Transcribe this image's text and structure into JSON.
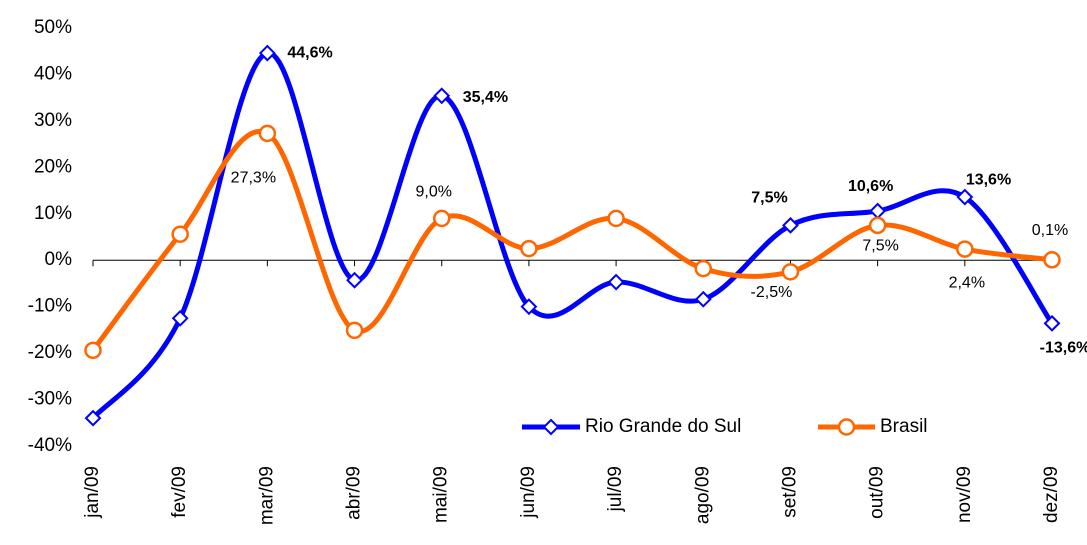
{
  "chart_data": {
    "type": "line",
    "categories": [
      "jan/09",
      "fev/09",
      "mar/09",
      "abr/09",
      "mai/09",
      "jun/09",
      "jul/09",
      "ago/09",
      "set/09",
      "out/09",
      "nov/09",
      "dez/09"
    ],
    "series": [
      {
        "name": "Rio Grande do Sul",
        "color": "#0000ff",
        "marker": "diamond",
        "values": [
          -34,
          -12.5,
          44.6,
          -4.3,
          35.4,
          -10,
          -4.7,
          -8.4,
          7.5,
          10.6,
          13.6,
          -13.6
        ],
        "value_labels": [
          null,
          null,
          "44,6%",
          null,
          "35,4%",
          null,
          null,
          null,
          "7,5%",
          "10,6%",
          "13,6%",
          "-13,6%"
        ]
      },
      {
        "name": "Brasil",
        "color": "#ff6600",
        "marker": "circle",
        "values": [
          -19.4,
          5.6,
          27.3,
          -15.1,
          9.0,
          2.5,
          9.0,
          -1.8,
          -2.5,
          7.5,
          2.4,
          0.1
        ],
        "value_labels": [
          null,
          null,
          "27,3%",
          null,
          "9,0%",
          null,
          null,
          null,
          "-2,5%",
          "7,5%",
          "2,4%",
          "0,1%"
        ]
      }
    ],
    "ylim": [
      -40,
      50
    ],
    "yticks": [
      {
        "value": -40,
        "label": "-40%"
      },
      {
        "value": -30,
        "label": "-30%"
      },
      {
        "value": -20,
        "label": "-20%"
      },
      {
        "value": -10,
        "label": "-10%"
      },
      {
        "value": 0,
        "label": "0%"
      },
      {
        "value": 10,
        "label": "10%"
      },
      {
        "value": 20,
        "label": "20%"
      },
      {
        "value": 30,
        "label": "30%"
      },
      {
        "value": 40,
        "label": "40%"
      },
      {
        "value": 50,
        "label": "50%"
      }
    ],
    "smooth": true,
    "grid": false,
    "legend": "bottom-right"
  }
}
